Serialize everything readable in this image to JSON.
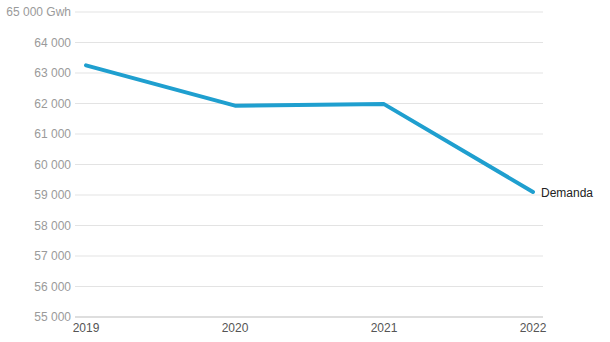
{
  "chart_data": {
    "type": "line",
    "categories": [
      "2019",
      "2020",
      "2021",
      "2022"
    ],
    "series": [
      {
        "name": "Demanda",
        "color": "#1f9fcf",
        "values": [
          63250,
          61930,
          61980,
          59100
        ]
      }
    ],
    "ylim": [
      55000,
      65000
    ],
    "yticks": [
      {
        "value": 55000,
        "label": "55 000"
      },
      {
        "value": 56000,
        "label": "56 000"
      },
      {
        "value": 57000,
        "label": "57 000"
      },
      {
        "value": 58000,
        "label": "58 000"
      },
      {
        "value": 59000,
        "label": "59 000"
      },
      {
        "value": 60000,
        "label": "60 000"
      },
      {
        "value": 61000,
        "label": "61 000"
      },
      {
        "value": 62000,
        "label": "62 000"
      },
      {
        "value": 63000,
        "label": "63 000"
      },
      {
        "value": 64000,
        "label": "64 000"
      },
      {
        "value": 65000,
        "label": "65 000 Gwh"
      }
    ],
    "grid": true
  }
}
